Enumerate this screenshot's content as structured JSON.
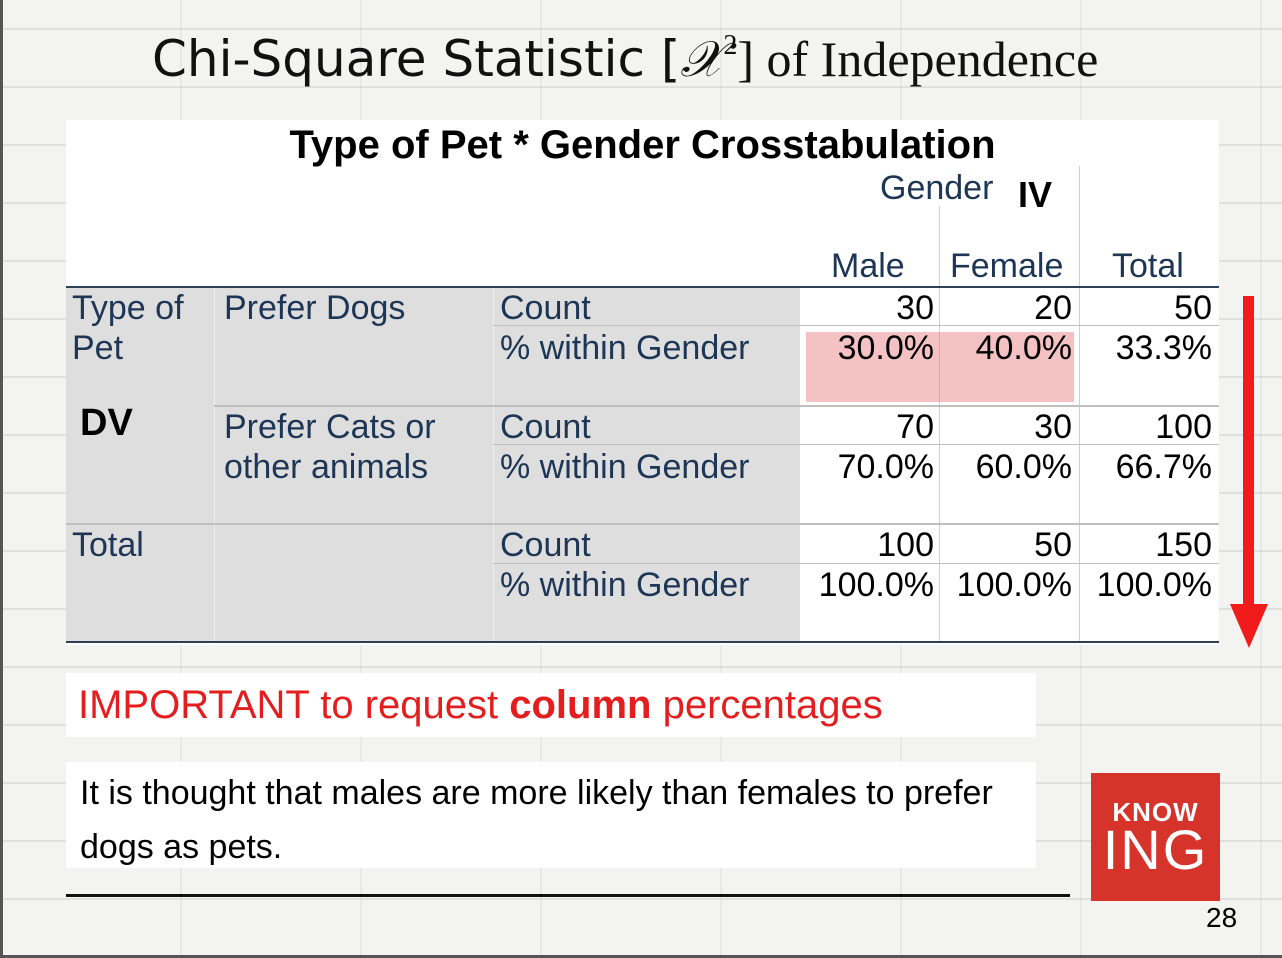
{
  "slide": {
    "title_part1": "Chi-Square Statistic [",
    "title_symbol": "𝒳",
    "title_sup": "2",
    "title_part2": "] of Independence",
    "page_number": "28"
  },
  "table": {
    "title": "Type of Pet * Gender Crosstabulation",
    "gender_header": "Gender",
    "iv_label": "IV",
    "dv_label": "DV",
    "columns": [
      "Male",
      "Female",
      "Total"
    ],
    "row_group_label_line1": "Type of",
    "row_group_label_line2": "Pet",
    "rows": [
      {
        "group_line1": "Prefer Dogs",
        "group_line2": "",
        "count_label": "Count",
        "pct_label": "% within Gender",
        "count": [
          "30",
          "20",
          "50"
        ],
        "pct": [
          "30.0%",
          "40.0%",
          "33.3%"
        ]
      },
      {
        "group_line1": "Prefer Cats or",
        "group_line2": "other animals",
        "count_label": "Count",
        "pct_label": "% within Gender",
        "count": [
          "70",
          "30",
          "100"
        ],
        "pct": [
          "70.0%",
          "60.0%",
          "66.7%"
        ]
      }
    ],
    "total": {
      "label": "Total",
      "count_label": "Count",
      "pct_label": "% within Gender",
      "count": [
        "100",
        "50",
        "150"
      ],
      "pct": [
        "100.0%",
        "100.0%",
        "100.0%"
      ]
    }
  },
  "important": {
    "prefix": "IMPORTANT to request ",
    "bold": "column",
    "suffix": " percentages"
  },
  "note": {
    "text": "It is thought that males are more likely than females to prefer dogs as pets."
  },
  "logo": {
    "line1": "KNOW",
    "line2": "ING"
  },
  "colors": {
    "accent_red": "#e41e1e",
    "arrow_red": "#f21b1b",
    "logo_red": "#d6332a",
    "highlight": "#e67878",
    "table_text": "#1d3655"
  }
}
